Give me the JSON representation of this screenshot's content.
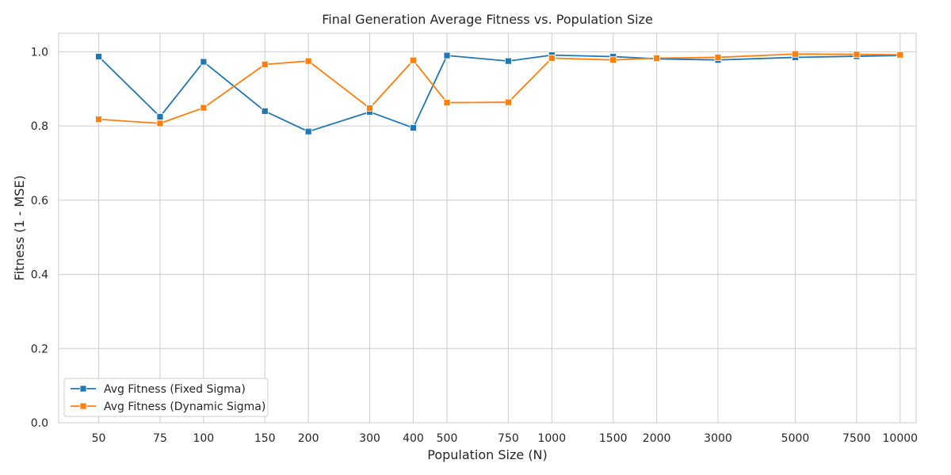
{
  "chart_data": {
    "type": "line",
    "title": "Final Generation Average Fitness vs. Population Size",
    "xlabel": "Population Size (N)",
    "ylabel": "Fitness (1 - MSE)",
    "x_scale": "log",
    "x": [
      50,
      75,
      100,
      150,
      200,
      300,
      400,
      500,
      750,
      1000,
      1500,
      2000,
      3000,
      5000,
      7500,
      10000
    ],
    "x_tick_labels": [
      "50",
      "75",
      "100",
      "150",
      "200",
      "300",
      "400",
      "500",
      "750",
      "1000",
      "1500",
      "2000",
      "3000",
      "5000",
      "7500",
      "10000"
    ],
    "ylim": [
      0,
      1.05
    ],
    "y_ticks": [
      0.0,
      0.2,
      0.4,
      0.6,
      0.8,
      1.0
    ],
    "y_tick_labels": [
      "0.0",
      "0.2",
      "0.4",
      "0.6",
      "0.8",
      "1.0"
    ],
    "grid": true,
    "legend_position": "lower-left",
    "series": [
      {
        "name": "Avg Fitness (Fixed Sigma)",
        "color": "#1f77b4",
        "marker": "square",
        "values": [
          0.987,
          0.825,
          0.973,
          0.84,
          0.785,
          0.838,
          0.795,
          0.99,
          0.975,
          0.991,
          0.987,
          0.981,
          0.978,
          0.985,
          0.988,
          0.99
        ]
      },
      {
        "name": "Avg Fitness (Dynamic Sigma)",
        "color": "#ff7f0e",
        "marker": "square",
        "values": [
          0.818,
          0.807,
          0.849,
          0.966,
          0.975,
          0.848,
          0.977,
          0.863,
          0.864,
          0.983,
          0.978,
          0.983,
          0.985,
          0.994,
          0.993,
          0.992
        ]
      }
    ]
  }
}
